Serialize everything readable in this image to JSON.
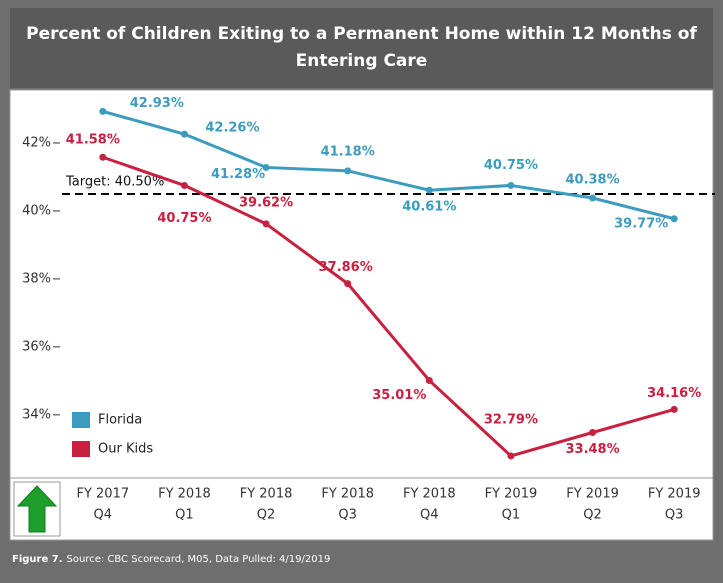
{
  "chart_data": {
    "type": "line",
    "title": "Percent of Children Exiting to a Permanent Home within 12 Months of Entering Care",
    "categories": [
      [
        "FY 2017",
        "Q4"
      ],
      [
        "FY 2018",
        "Q1"
      ],
      [
        "FY 2018",
        "Q2"
      ],
      [
        "FY 2018",
        "Q3"
      ],
      [
        "FY 2018",
        "Q4"
      ],
      [
        "FY 2019",
        "Q1"
      ],
      [
        "FY 2019",
        "Q2"
      ],
      [
        "FY 2019",
        "Q3"
      ]
    ],
    "series": [
      {
        "name": "Florida",
        "color": "#3b9cbf",
        "values": [
          42.93,
          42.26,
          41.28,
          41.18,
          40.61,
          40.75,
          40.38,
          39.77
        ],
        "value_labels": [
          "42.93%",
          "42.26%",
          "41.28%",
          "41.18%",
          "40.61%",
          "40.75%",
          "40.38%",
          "39.77%"
        ]
      },
      {
        "name": "Our Kids",
        "color": "#c8203f",
        "values": [
          41.58,
          40.75,
          39.62,
          37.86,
          35.01,
          32.79,
          33.48,
          34.16
        ],
        "value_labels": [
          "41.58%",
          "40.75%",
          "39.62%",
          "37.86%",
          "35.01%",
          "32.79%",
          "33.48%",
          "34.16%"
        ]
      }
    ],
    "target": {
      "value": 40.5,
      "label": "Target: 40.50%"
    },
    "ylim": [
      32.2,
      43.5
    ],
    "yticks": [
      {
        "value": 34,
        "label": "34%"
      },
      {
        "value": 36,
        "label": "36%"
      },
      {
        "value": 38,
        "label": "38%"
      },
      {
        "value": 40,
        "label": "40%"
      },
      {
        "value": 42,
        "label": "42%"
      }
    ],
    "legend": "lower left",
    "footer": {
      "figure": "Figure 7.",
      "source": "Source: CBC Scorecard, M05, Data Pulled: 4/19/2019"
    }
  }
}
